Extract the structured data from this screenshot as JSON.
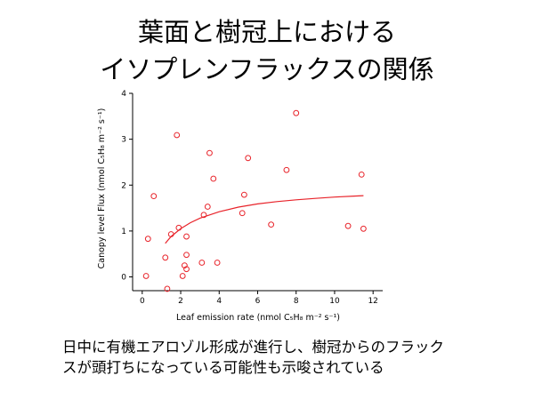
{
  "title_lines": [
    "葉面と樹冠上における",
    "イソプレンフラックスの関係"
  ],
  "caption_lines": [
    "日中に有機エアロゾル形成が進行し、樹冠からのフラック",
    "スが頭打ちになっている可能性も示唆されている"
  ],
  "colors": {
    "points": "#e8232a",
    "fit_line": "#e8232a",
    "axis": "#000000"
  },
  "chart_data": {
    "type": "scatter",
    "title": "",
    "xlabel": "Leaf emission rate (nmol C₅H₈ m⁻² s⁻¹)",
    "ylabel": "Canopy level Flux (nmol C₅H₈ m⁻² s⁻¹)",
    "xlim": [
      -0.5,
      12.5
    ],
    "ylim": [
      -0.3,
      4
    ],
    "xticks": [
      0,
      2,
      4,
      6,
      8,
      10,
      12
    ],
    "yticks": [
      0,
      1,
      2,
      3,
      4
    ],
    "grid": false,
    "marker": "open-circle",
    "points": [
      {
        "x": 0.2,
        "y": 0.02
      },
      {
        "x": 0.3,
        "y": 0.83
      },
      {
        "x": 0.6,
        "y": 1.76
      },
      {
        "x": 1.2,
        "y": 0.42
      },
      {
        "x": 1.3,
        "y": -0.26
      },
      {
        "x": 1.5,
        "y": 0.93
      },
      {
        "x": 1.8,
        "y": 3.09
      },
      {
        "x": 1.9,
        "y": 1.07
      },
      {
        "x": 2.1,
        "y": 0.02
      },
      {
        "x": 2.2,
        "y": 0.25
      },
      {
        "x": 2.3,
        "y": 0.17
      },
      {
        "x": 2.3,
        "y": 0.48
      },
      {
        "x": 2.3,
        "y": 0.88
      },
      {
        "x": 3.1,
        "y": 0.31
      },
      {
        "x": 3.2,
        "y": 1.35
      },
      {
        "x": 3.4,
        "y": 1.53
      },
      {
        "x": 3.5,
        "y": 2.7
      },
      {
        "x": 3.7,
        "y": 2.14
      },
      {
        "x": 3.9,
        "y": 0.31
      },
      {
        "x": 5.2,
        "y": 1.39
      },
      {
        "x": 5.3,
        "y": 1.79
      },
      {
        "x": 5.5,
        "y": 2.59
      },
      {
        "x": 6.7,
        "y": 1.14
      },
      {
        "x": 7.5,
        "y": 2.33
      },
      {
        "x": 8.0,
        "y": 3.57
      },
      {
        "x": 10.7,
        "y": 1.11
      },
      {
        "x": 11.4,
        "y": 2.23
      },
      {
        "x": 11.5,
        "y": 1.05
      }
    ],
    "fit_line": {
      "x": [
        1.2,
        1.5,
        2,
        2.5,
        3,
        4,
        5,
        6,
        7,
        8,
        9,
        10,
        11,
        11.5
      ],
      "y": [
        0.73,
        0.88,
        1.05,
        1.18,
        1.28,
        1.42,
        1.52,
        1.59,
        1.64,
        1.68,
        1.71,
        1.74,
        1.76,
        1.77
      ]
    }
  }
}
